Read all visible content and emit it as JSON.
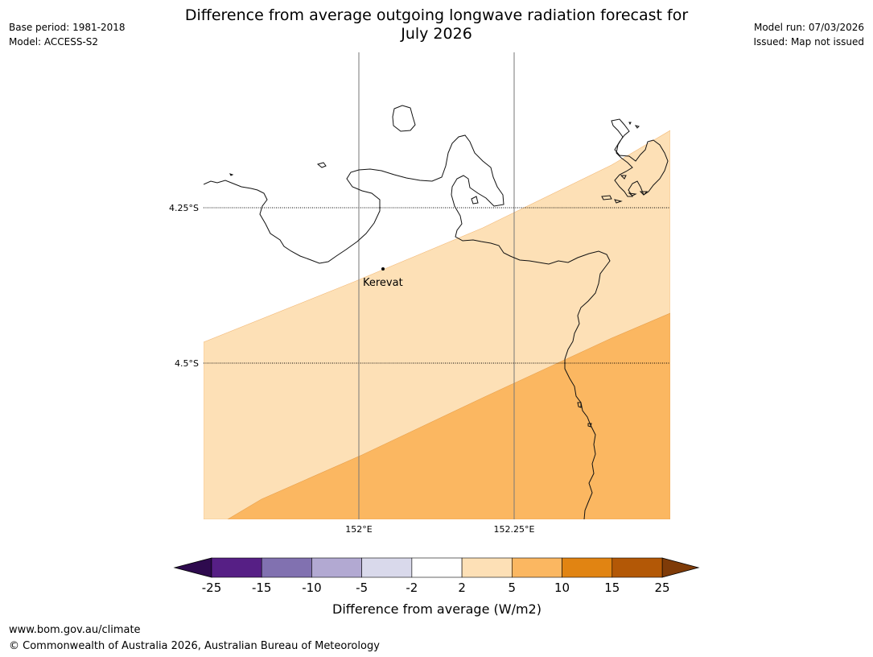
{
  "header": {
    "title_line1": "Difference from average outgoing longwave radiation forecast for",
    "title_line2": "July 2026",
    "base_period": "Base period: 1981-2018",
    "model": "Model: ACCESS-S2",
    "model_run": "Model run: 07/03/2026",
    "issued": "Issued: Map not issued"
  },
  "map": {
    "latitude_labels": [
      "4.25°S",
      "4.5°S"
    ],
    "longitude_labels": [
      "152°E",
      "152.25°E"
    ],
    "place": {
      "name": "Kerevat"
    },
    "zones": [
      {
        "range": "2 to 5",
        "color": "#fde0b6"
      },
      {
        "range": "5 to 10",
        "color": "#fbb761"
      }
    ]
  },
  "colorbar": {
    "title": "Difference from average (W/m2)",
    "ticks": [
      "-25",
      "-15",
      "-10",
      "-5",
      "-2",
      "2",
      "5",
      "10",
      "15",
      "25"
    ],
    "colors": [
      "#561f85",
      "#8171b0",
      "#b2a9d2",
      "#d9d9eb",
      "#ffffff",
      "#fde0b6",
      "#fbb761",
      "#e18412",
      "#b35806"
    ],
    "under_color": "#2e0a4e",
    "over_color": "#7f3b08"
  },
  "footer": {
    "url": "www.bom.gov.au/climate",
    "copyright": "© Commonwealth of Australia 2026, Australian Bureau of Meteorology"
  }
}
